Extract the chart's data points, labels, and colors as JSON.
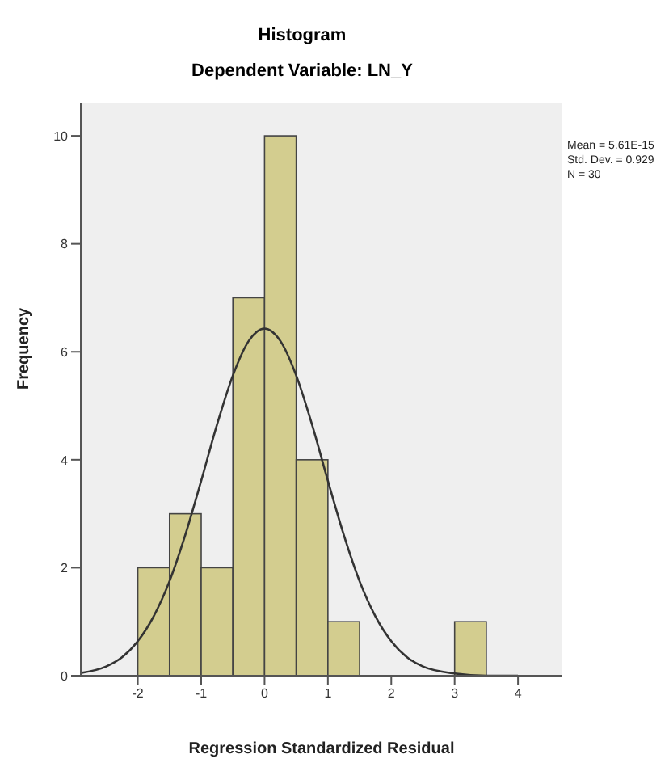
{
  "chart_data": {
    "type": "histogram",
    "title": "Histogram",
    "subtitle": "Dependent Variable: LN_Y",
    "xlabel": "Regression Standardized Residual",
    "ylabel": "Frequency",
    "bins": [
      -2,
      -1.5,
      -1,
      -0.5,
      0,
      0.5,
      1,
      1.5,
      2,
      2.5,
      3,
      3.5
    ],
    "values": [
      2,
      3,
      2,
      7,
      10,
      4,
      1,
      0,
      0,
      0,
      1
    ],
    "color": "#d3cd8f",
    "series": [
      {
        "type": "line",
        "color": "#333333",
        "x": [
          -2.9,
          -2.5,
          -2.25,
          -2,
          -1.75,
          -1.5,
          -1.25,
          -1,
          -0.75,
          -0.5,
          -0.25,
          0,
          0.25,
          0.5,
          0.75,
          1,
          1.25,
          1.5,
          1.75,
          2,
          2.25,
          2.5,
          3,
          3.5,
          4
        ],
        "values": [
          0.05,
          0.17,
          0.34,
          0.64,
          1.1,
          1.75,
          2.61,
          3.61,
          4.65,
          5.56,
          6.2,
          6.43,
          6.2,
          5.56,
          4.65,
          3.61,
          2.61,
          1.75,
          1.1,
          0.64,
          0.34,
          0.17,
          0.04,
          0,
          0
        ]
      }
    ],
    "xlim": [
      -2.9,
      4.7
    ],
    "xticks": [
      -2,
      -1,
      0,
      1,
      2,
      3,
      4
    ],
    "ylim": [
      0,
      10.6
    ],
    "yticks": [
      0,
      2,
      4,
      6,
      8,
      10
    ],
    "marker": "none",
    "annotations": [
      "Mean = 5.61E-15",
      "Std. Dev. = 0.929",
      "N = 30"
    ]
  }
}
